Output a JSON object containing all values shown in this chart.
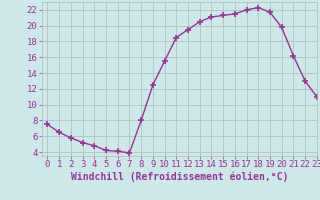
{
  "x": [
    0,
    1,
    2,
    3,
    4,
    5,
    6,
    7,
    8,
    9,
    10,
    11,
    12,
    13,
    14,
    15,
    16,
    17,
    18,
    19,
    20,
    21,
    22,
    23
  ],
  "y": [
    7.5,
    6.5,
    5.8,
    5.2,
    4.8,
    4.2,
    4.1,
    3.9,
    8.0,
    12.5,
    15.5,
    18.5,
    19.5,
    20.5,
    21.1,
    21.3,
    21.5,
    22.0,
    22.3,
    21.7,
    19.8,
    16.2,
    13.0,
    11.0
  ],
  "line_color": "#993399",
  "marker": "+",
  "marker_size": 4,
  "marker_edge_width": 1.2,
  "bg_color": "#cce8e8",
  "grid_color": "#aabbbb",
  "xlabel": "Windchill (Refroidissement éolien,°C)",
  "ylim": [
    3.5,
    23
  ],
  "xlim": [
    -0.5,
    23
  ],
  "yticks": [
    4,
    6,
    8,
    10,
    12,
    14,
    16,
    18,
    20,
    22
  ],
  "xticks": [
    0,
    1,
    2,
    3,
    4,
    5,
    6,
    7,
    8,
    9,
    10,
    11,
    12,
    13,
    14,
    15,
    16,
    17,
    18,
    19,
    20,
    21,
    22,
    23
  ],
  "tick_color": "#993399",
  "label_color": "#993399",
  "font_size": 6.5,
  "xlabel_fontsize": 7,
  "line_width": 1.0
}
